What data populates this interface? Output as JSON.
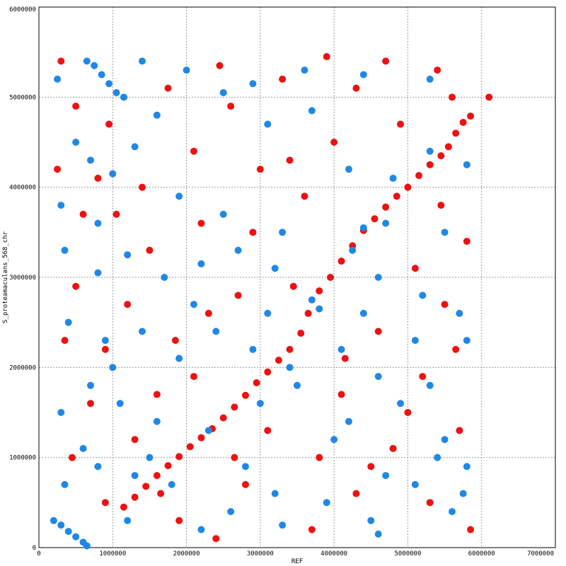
{
  "chart_data": {
    "type": "scatter",
    "title": "",
    "xlabel": "REF",
    "ylabel": "S_proteamaculans_568_chr",
    "xlim": [
      0,
      7000000
    ],
    "ylim": [
      0,
      6000000
    ],
    "x_ticks": [
      "0",
      "1000000",
      "2000000",
      "3000000",
      "4000000",
      "5000000",
      "6000000",
      "7000000"
    ],
    "y_ticks": [
      "0",
      "1000000",
      "2000000",
      "3000000",
      "4000000",
      "5000000",
      "6000000"
    ],
    "grid": true,
    "series": [
      {
        "color": "#ee1111",
        "points": [
          [
            1150000,
            450000
          ],
          [
            1300000,
            560000
          ],
          [
            1450000,
            680000
          ],
          [
            1600000,
            800000
          ],
          [
            1750000,
            910000
          ],
          [
            1900000,
            1010000
          ],
          [
            2050000,
            1120000
          ],
          [
            2200000,
            1220000
          ],
          [
            2350000,
            1320000
          ],
          [
            2500000,
            1440000
          ],
          [
            2650000,
            1560000
          ],
          [
            2800000,
            1690000
          ],
          [
            2950000,
            1830000
          ],
          [
            3100000,
            1950000
          ],
          [
            3250000,
            2080000
          ],
          [
            3400000,
            2200000
          ],
          [
            3550000,
            2380000
          ],
          [
            3650000,
            2600000
          ],
          [
            3800000,
            2850000
          ],
          [
            3950000,
            3000000
          ],
          [
            4100000,
            3180000
          ],
          [
            4250000,
            3350000
          ],
          [
            4400000,
            3520000
          ],
          [
            4550000,
            3650000
          ],
          [
            4700000,
            3780000
          ],
          [
            4850000,
            3900000
          ],
          [
            5000000,
            4000000
          ],
          [
            5150000,
            4130000
          ],
          [
            5300000,
            4250000
          ],
          [
            5450000,
            4350000
          ],
          [
            5550000,
            4450000
          ],
          [
            5650000,
            4600000
          ],
          [
            5750000,
            4720000
          ],
          [
            5850000,
            4790000
          ],
          [
            6100000,
            5000000
          ],
          [
            300000,
            5400000
          ],
          [
            500000,
            4900000
          ],
          [
            800000,
            4100000
          ],
          [
            1050000,
            3700000
          ],
          [
            1500000,
            3300000
          ],
          [
            2100000,
            4400000
          ],
          [
            2600000,
            4900000
          ],
          [
            3300000,
            5200000
          ],
          [
            4300000,
            5100000
          ],
          [
            4900000,
            4700000
          ],
          [
            5400000,
            5300000
          ],
          [
            500000,
            2900000
          ],
          [
            900000,
            2200000
          ],
          [
            1600000,
            1700000
          ],
          [
            2300000,
            2600000
          ],
          [
            2900000,
            3500000
          ],
          [
            3600000,
            3900000
          ],
          [
            4600000,
            2400000
          ],
          [
            5200000,
            1900000
          ],
          [
            5700000,
            1300000
          ],
          [
            450000,
            1000000
          ],
          [
            900000,
            500000
          ],
          [
            1900000,
            300000
          ],
          [
            2800000,
            700000
          ],
          [
            3700000,
            200000
          ],
          [
            4500000,
            900000
          ],
          [
            5300000,
            500000
          ],
          [
            5850000,
            200000
          ],
          [
            700000,
            1600000
          ],
          [
            1300000,
            1200000
          ],
          [
            2100000,
            1900000
          ],
          [
            3100000,
            1300000
          ],
          [
            4100000,
            1700000
          ],
          [
            4800000,
            1100000
          ],
          [
            5500000,
            2700000
          ],
          [
            5800000,
            3400000
          ],
          [
            600000,
            3700000
          ],
          [
            1200000,
            2700000
          ],
          [
            2700000,
            2800000
          ],
          [
            3400000,
            4300000
          ],
          [
            4000000,
            4500000
          ],
          [
            5100000,
            3100000
          ],
          [
            350000,
            2300000
          ],
          [
            1750000,
            5100000
          ],
          [
            2450000,
            5350000
          ],
          [
            3900000,
            5450000
          ],
          [
            4700000,
            5400000
          ],
          [
            5600000,
            5000000
          ],
          [
            1400000,
            4000000
          ],
          [
            2200000,
            3600000
          ],
          [
            3000000,
            4200000
          ],
          [
            3800000,
            1000000
          ],
          [
            4300000,
            600000
          ],
          [
            5000000,
            1500000
          ],
          [
            250000,
            4200000
          ],
          [
            950000,
            4700000
          ],
          [
            1850000,
            2300000
          ],
          [
            2650000,
            1000000
          ],
          [
            3450000,
            2900000
          ],
          [
            4150000,
            2100000
          ],
          [
            5450000,
            3800000
          ],
          [
            5650000,
            2200000
          ],
          [
            1650000,
            600000
          ],
          [
            2400000,
            100000
          ]
        ]
      },
      {
        "color": "#1f88e5",
        "points": [
          [
            200000,
            300000
          ],
          [
            300000,
            250000
          ],
          [
            400000,
            180000
          ],
          [
            500000,
            120000
          ],
          [
            600000,
            60000
          ],
          [
            650000,
            20000
          ],
          [
            650000,
            5400000
          ],
          [
            750000,
            5350000
          ],
          [
            850000,
            5250000
          ],
          [
            950000,
            5150000
          ],
          [
            1050000,
            5050000
          ],
          [
            1150000,
            5000000
          ],
          [
            3700000,
            2750000
          ],
          [
            3800000,
            2650000
          ],
          [
            4250000,
            3300000
          ],
          [
            4400000,
            3550000
          ],
          [
            300000,
            3800000
          ],
          [
            500000,
            4500000
          ],
          [
            700000,
            4300000
          ],
          [
            1000000,
            4150000
          ],
          [
            1300000,
            4450000
          ],
          [
            1600000,
            4800000
          ],
          [
            2000000,
            5300000
          ],
          [
            2500000,
            5050000
          ],
          [
            3100000,
            4700000
          ],
          [
            3700000,
            4850000
          ],
          [
            4200000,
            4200000
          ],
          [
            4800000,
            4100000
          ],
          [
            5300000,
            4400000
          ],
          [
            5800000,
            4250000
          ],
          [
            350000,
            3300000
          ],
          [
            800000,
            3050000
          ],
          [
            1200000,
            3250000
          ],
          [
            1700000,
            3000000
          ],
          [
            2200000,
            3150000
          ],
          [
            2700000,
            3300000
          ],
          [
            3200000,
            3100000
          ],
          [
            4600000,
            3000000
          ],
          [
            5200000,
            2800000
          ],
          [
            5700000,
            2600000
          ],
          [
            400000,
            2500000
          ],
          [
            900000,
            2300000
          ],
          [
            1400000,
            2400000
          ],
          [
            1900000,
            2100000
          ],
          [
            2400000,
            2400000
          ],
          [
            2900000,
            2200000
          ],
          [
            3400000,
            2000000
          ],
          [
            4100000,
            2200000
          ],
          [
            4600000,
            1900000
          ],
          [
            5100000,
            2300000
          ],
          [
            5800000,
            2300000
          ],
          [
            300000,
            1500000
          ],
          [
            700000,
            1800000
          ],
          [
            1100000,
            1600000
          ],
          [
            1600000,
            1400000
          ],
          [
            2300000,
            1300000
          ],
          [
            3000000,
            1600000
          ],
          [
            3500000,
            1800000
          ],
          [
            4200000,
            1400000
          ],
          [
            4900000,
            1600000
          ],
          [
            5500000,
            1200000
          ],
          [
            5800000,
            900000
          ],
          [
            350000,
            700000
          ],
          [
            800000,
            900000
          ],
          [
            1300000,
            800000
          ],
          [
            1800000,
            700000
          ],
          [
            2600000,
            400000
          ],
          [
            3200000,
            600000
          ],
          [
            3900000,
            500000
          ],
          [
            4500000,
            300000
          ],
          [
            5100000,
            700000
          ],
          [
            5600000,
            400000
          ],
          [
            600000,
            1100000
          ],
          [
            1500000,
            1000000
          ],
          [
            2800000,
            900000
          ],
          [
            4000000,
            1200000
          ],
          [
            4700000,
            800000
          ],
          [
            5400000,
            1000000
          ],
          [
            250000,
            5200000
          ],
          [
            1400000,
            5400000
          ],
          [
            2900000,
            5150000
          ],
          [
            3600000,
            5300000
          ],
          [
            4400000,
            5250000
          ],
          [
            5300000,
            5200000
          ],
          [
            800000,
            3600000
          ],
          [
            1900000,
            3900000
          ],
          [
            2500000,
            3700000
          ],
          [
            3300000,
            3500000
          ],
          [
            4700000,
            3600000
          ],
          [
            5500000,
            3500000
          ],
          [
            1000000,
            2000000
          ],
          [
            2100000,
            2700000
          ],
          [
            3100000,
            2600000
          ],
          [
            4400000,
            2600000
          ],
          [
            5300000,
            1800000
          ],
          [
            1200000,
            300000
          ],
          [
            2200000,
            200000
          ],
          [
            3300000,
            250000
          ],
          [
            4600000,
            150000
          ],
          [
            5750000,
            600000
          ]
        ]
      }
    ]
  }
}
